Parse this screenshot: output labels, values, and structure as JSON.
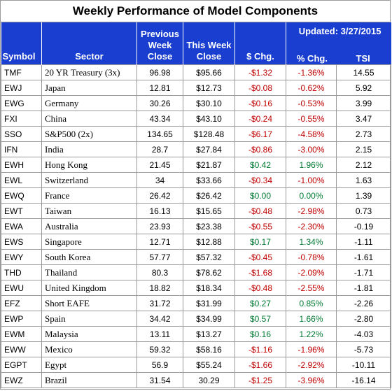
{
  "title": "Weekly Performance of Model Components",
  "header": {
    "symbol": "Symbol",
    "sector": "Sector",
    "prev_close": "Previous Week Close",
    "this_close": "This Week Close",
    "dollar_chg": "$ Chg.",
    "pct_chg": "% Chg.",
    "updated": "Updated:  3/27/2015",
    "tsi": "TSI"
  },
  "rows": [
    {
      "symbol": "TMF",
      "sector": "20 YR Treasury  (3x)",
      "prev": "96.98",
      "this": "$95.66",
      "dchg": "-$1.32",
      "pchg": "-1.36%",
      "tsi": "14.55"
    },
    {
      "symbol": "EWJ",
      "sector": "Japan",
      "prev": "12.81",
      "this": "$12.73",
      "dchg": "-$0.08",
      "pchg": "-0.62%",
      "tsi": "5.92"
    },
    {
      "symbol": "EWG",
      "sector": "Germany",
      "prev": "30.26",
      "this": "$30.10",
      "dchg": "-$0.16",
      "pchg": "-0.53%",
      "tsi": "3.99"
    },
    {
      "symbol": "FXI",
      "sector": "China",
      "prev": "43.34",
      "this": "$43.10",
      "dchg": "-$0.24",
      "pchg": "-0.55%",
      "tsi": "3.47"
    },
    {
      "symbol": "SSO",
      "sector": "S&P500 (2x)",
      "prev": "134.65",
      "this": "$128.48",
      "dchg": "-$6.17",
      "pchg": "-4.58%",
      "tsi": "2.73"
    },
    {
      "symbol": "IFN",
      "sector": "India",
      "prev": "28.7",
      "this": "$27.84",
      "dchg": "-$0.86",
      "pchg": "-3.00%",
      "tsi": "2.15"
    },
    {
      "symbol": "EWH",
      "sector": "Hong Kong",
      "prev": "21.45",
      "this": "$21.87",
      "dchg": "$0.42",
      "pchg": "1.96%",
      "tsi": "2.12"
    },
    {
      "symbol": "EWL",
      "sector": "Switzerland",
      "prev": "34",
      "this": "$33.66",
      "dchg": "-$0.34",
      "pchg": "-1.00%",
      "tsi": "1.63"
    },
    {
      "symbol": "EWQ",
      "sector": "France",
      "prev": "26.42",
      "this": "$26.42",
      "dchg": "$0.00",
      "pchg": "0.00%",
      "tsi": "1.39"
    },
    {
      "symbol": "EWT",
      "sector": "Taiwan",
      "prev": "16.13",
      "this": "$15.65",
      "dchg": "-$0.48",
      "pchg": "-2.98%",
      "tsi": "0.73"
    },
    {
      "symbol": "EWA",
      "sector": "Australia",
      "prev": "23.93",
      "this": "$23.38",
      "dchg": "-$0.55",
      "pchg": "-2.30%",
      "tsi": "-0.19"
    },
    {
      "symbol": "EWS",
      "sector": "Singapore",
      "prev": "12.71",
      "this": "$12.88",
      "dchg": "$0.17",
      "pchg": "1.34%",
      "tsi": "-1.11"
    },
    {
      "symbol": "EWY",
      "sector": "South Korea",
      "prev": "57.77",
      "this": "$57.32",
      "dchg": "-$0.45",
      "pchg": "-0.78%",
      "tsi": "-1.61"
    },
    {
      "symbol": "THD",
      "sector": "Thailand",
      "prev": "80.3",
      "this": "$78.62",
      "dchg": "-$1.68",
      "pchg": "-2.09%",
      "tsi": "-1.71"
    },
    {
      "symbol": "EWU",
      "sector": "United Kingdom",
      "prev": "18.82",
      "this": "$18.34",
      "dchg": "-$0.48",
      "pchg": "-2.55%",
      "tsi": "-1.81"
    },
    {
      "symbol": "EFZ",
      "sector": "Short EAFE",
      "prev": "31.72",
      "this": "$31.99",
      "dchg": "$0.27",
      "pchg": "0.85%",
      "tsi": "-2.26"
    },
    {
      "symbol": "EWP",
      "sector": "Spain",
      "prev": "34.42",
      "this": "$34.99",
      "dchg": "$0.57",
      "pchg": "1.66%",
      "tsi": "-2.80"
    },
    {
      "symbol": "EWM",
      "sector": "Malaysia",
      "prev": "13.11",
      "this": "$13.27",
      "dchg": "$0.16",
      "pchg": "1.22%",
      "tsi": "-4.03"
    },
    {
      "symbol": "EWW",
      "sector": "Mexico",
      "prev": "59.32",
      "this": "$58.16",
      "dchg": "-$1.16",
      "pchg": "-1.96%",
      "tsi": "-5.73"
    },
    {
      "symbol": "EGPT",
      "sector": "Egypt",
      "prev": "56.9",
      "this": "$55.24",
      "dchg": "-$1.66",
      "pchg": "-2.92%",
      "tsi": "-10.11"
    },
    {
      "symbol": "EWZ",
      "sector": "Brazil",
      "prev": "31.54",
      "this": "30.29",
      "dchg": "-$1.25",
      "pchg": "-3.96%",
      "tsi": "-16.14"
    }
  ],
  "colors": {
    "header_bg": "#1a3fd0",
    "negative": "#c00000",
    "positive": "#007a33",
    "grid": "#9a9a9a"
  }
}
